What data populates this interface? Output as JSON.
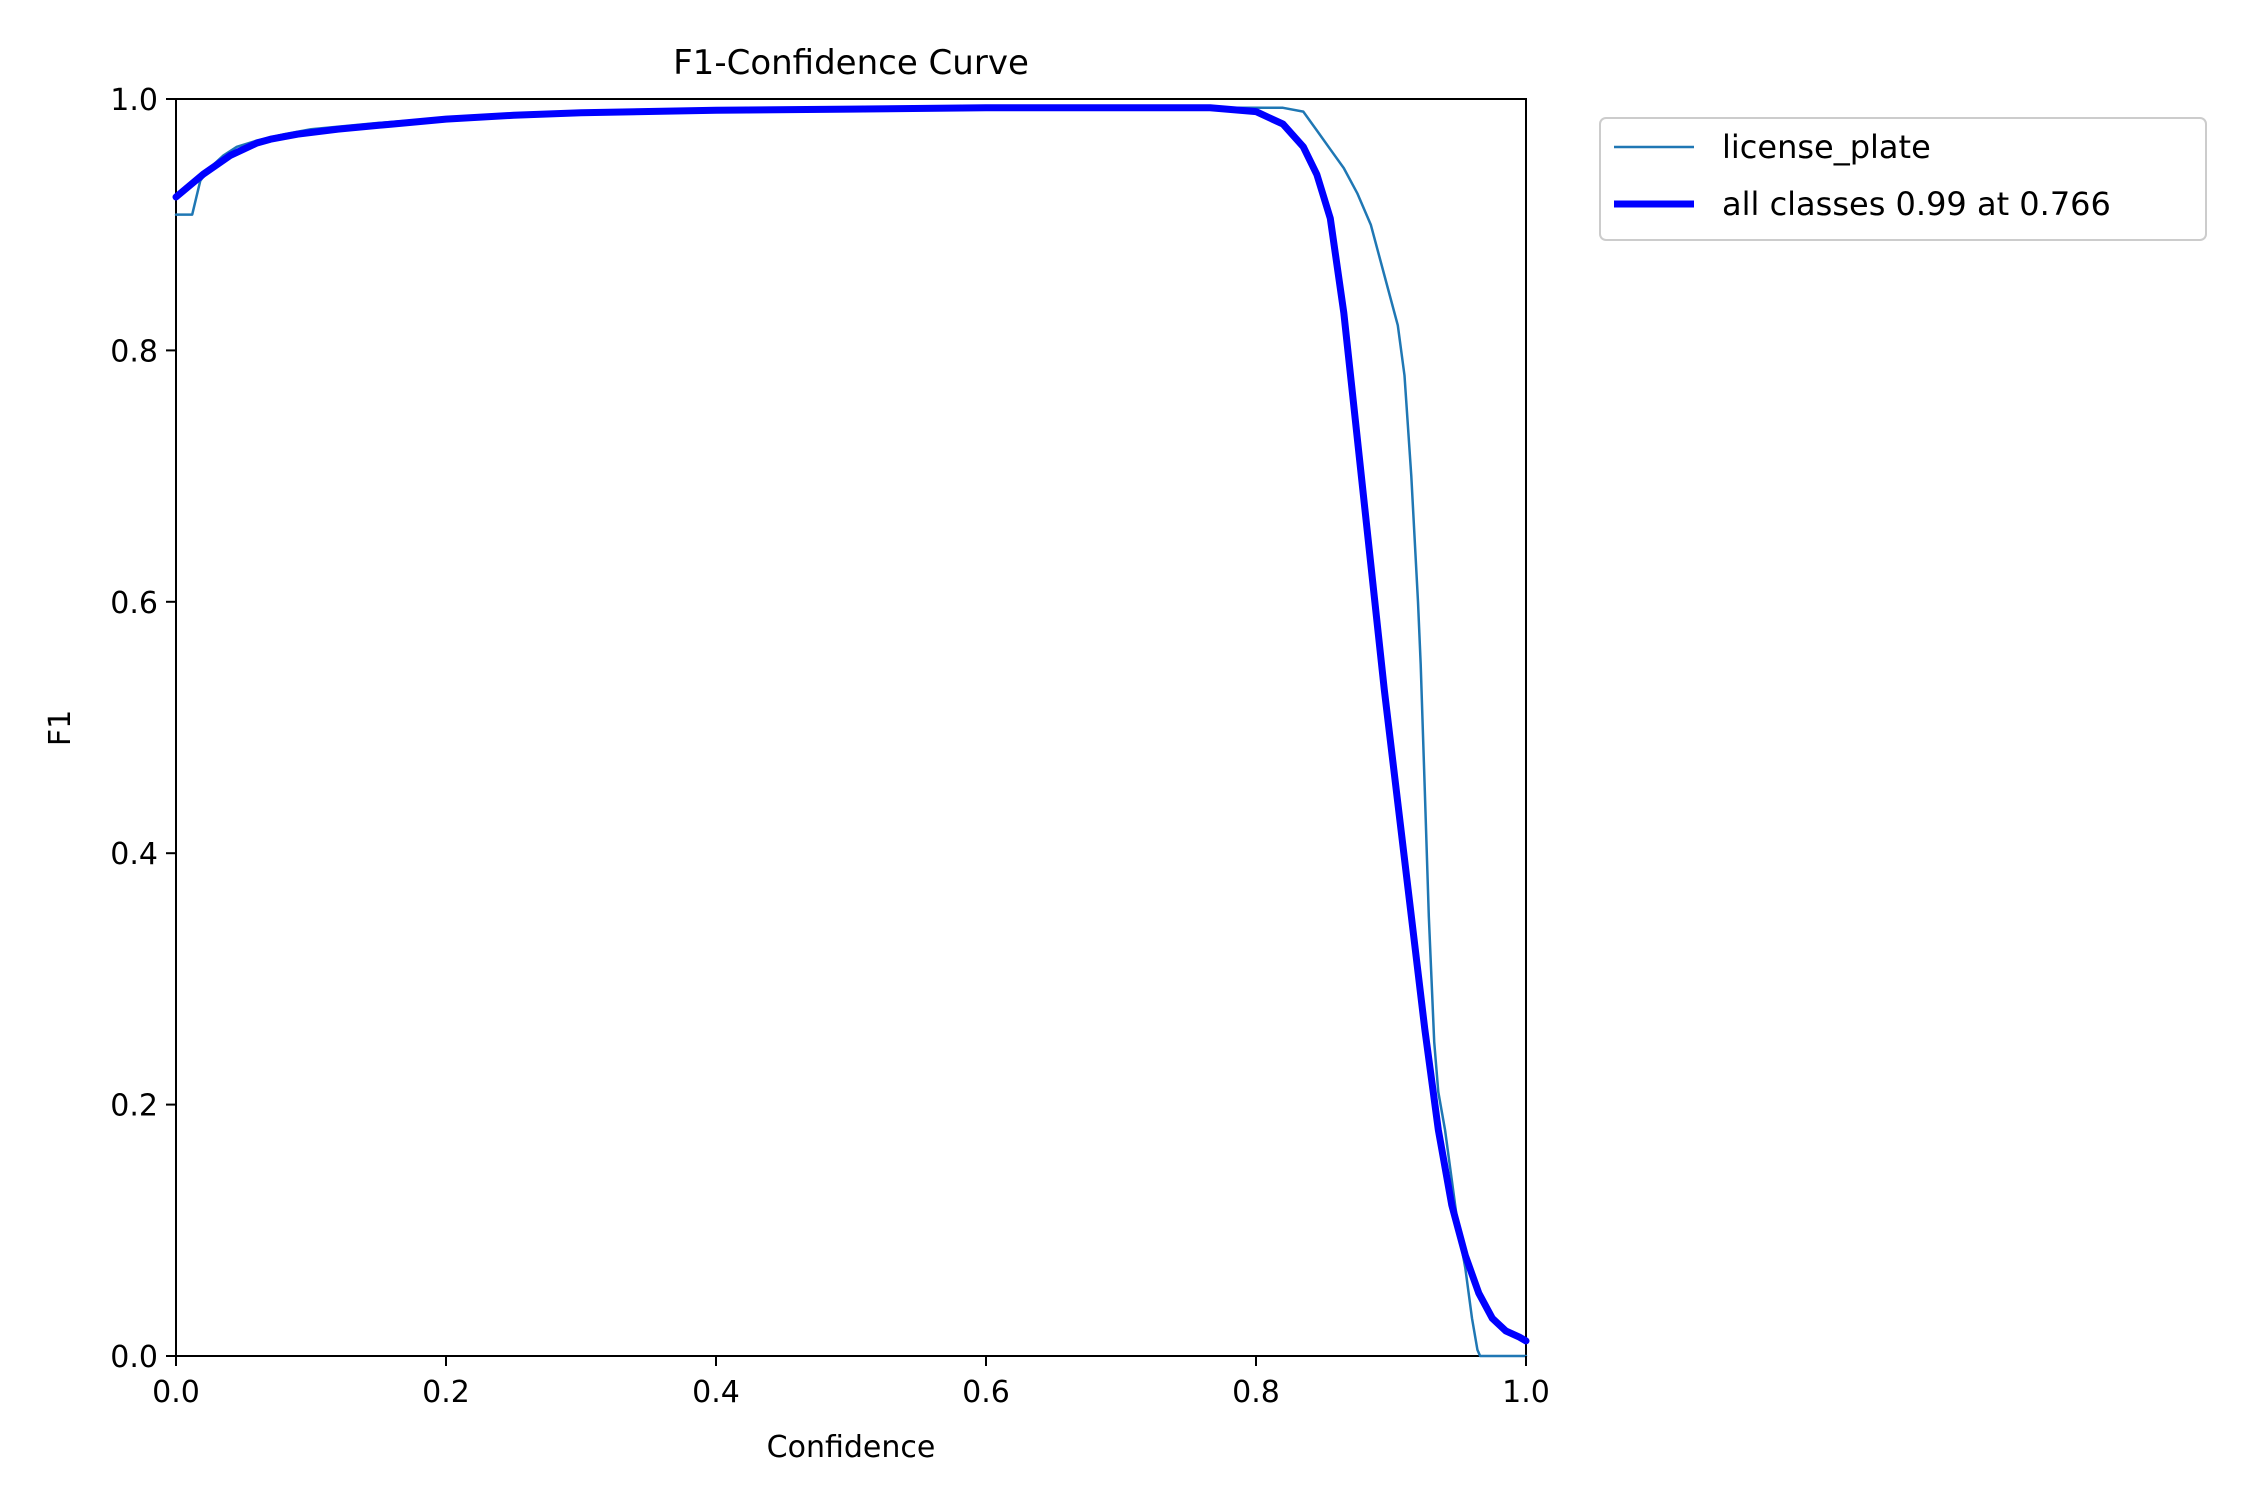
{
  "chart_data": {
    "type": "line",
    "title": "F1-Confidence Curve",
    "xlabel": "Confidence",
    "ylabel": "F1",
    "xlim": [
      0.0,
      1.0
    ],
    "ylim": [
      0.0,
      1.0
    ],
    "xticks": [
      "0.0",
      "0.2",
      "0.4",
      "0.6",
      "0.8",
      "1.0"
    ],
    "yticks": [
      "0.0",
      "0.2",
      "0.4",
      "0.6",
      "0.8",
      "1.0"
    ],
    "grid": false,
    "legend_position": "outside-top-right",
    "series": [
      {
        "name": "license_plate",
        "color": "#1f77b4",
        "x": [
          0.0,
          0.012,
          0.018,
          0.025,
          0.035,
          0.045,
          0.06,
          0.08,
          0.1,
          0.15,
          0.2,
          0.25,
          0.3,
          0.4,
          0.5,
          0.6,
          0.7,
          0.8,
          0.82,
          0.835,
          0.845,
          0.855,
          0.865,
          0.875,
          0.885,
          0.895,
          0.905,
          0.91,
          0.915,
          0.92,
          0.922,
          0.925,
          0.928,
          0.932,
          0.935,
          0.94,
          0.945,
          0.95,
          0.955,
          0.96,
          0.964,
          0.966,
          1.0
        ],
        "y": [
          0.908,
          0.908,
          0.935,
          0.945,
          0.955,
          0.962,
          0.967,
          0.972,
          0.976,
          0.981,
          0.985,
          0.988,
          0.99,
          0.991,
          0.992,
          0.993,
          0.993,
          0.993,
          0.993,
          0.99,
          0.975,
          0.96,
          0.945,
          0.925,
          0.9,
          0.86,
          0.82,
          0.78,
          0.7,
          0.6,
          0.55,
          0.45,
          0.35,
          0.25,
          0.21,
          0.18,
          0.14,
          0.1,
          0.07,
          0.03,
          0.005,
          0.0,
          0.0
        ]
      },
      {
        "name": "all classes 0.99 at 0.766",
        "color": "#0000ff",
        "x": [
          0.0,
          0.02,
          0.04,
          0.06,
          0.07,
          0.09,
          0.12,
          0.16,
          0.2,
          0.25,
          0.3,
          0.4,
          0.5,
          0.6,
          0.7,
          0.766,
          0.8,
          0.82,
          0.835,
          0.845,
          0.855,
          0.865,
          0.875,
          0.885,
          0.895,
          0.905,
          0.915,
          0.925,
          0.935,
          0.945,
          0.955,
          0.965,
          0.975,
          0.985,
          0.995,
          1.0
        ],
        "y": [
          0.922,
          0.94,
          0.955,
          0.965,
          0.968,
          0.972,
          0.976,
          0.98,
          0.984,
          0.987,
          0.989,
          0.991,
          0.992,
          0.993,
          0.993,
          0.993,
          0.99,
          0.98,
          0.962,
          0.94,
          0.905,
          0.83,
          0.73,
          0.63,
          0.53,
          0.44,
          0.35,
          0.26,
          0.18,
          0.12,
          0.08,
          0.05,
          0.03,
          0.02,
          0.015,
          0.012
        ]
      }
    ]
  }
}
